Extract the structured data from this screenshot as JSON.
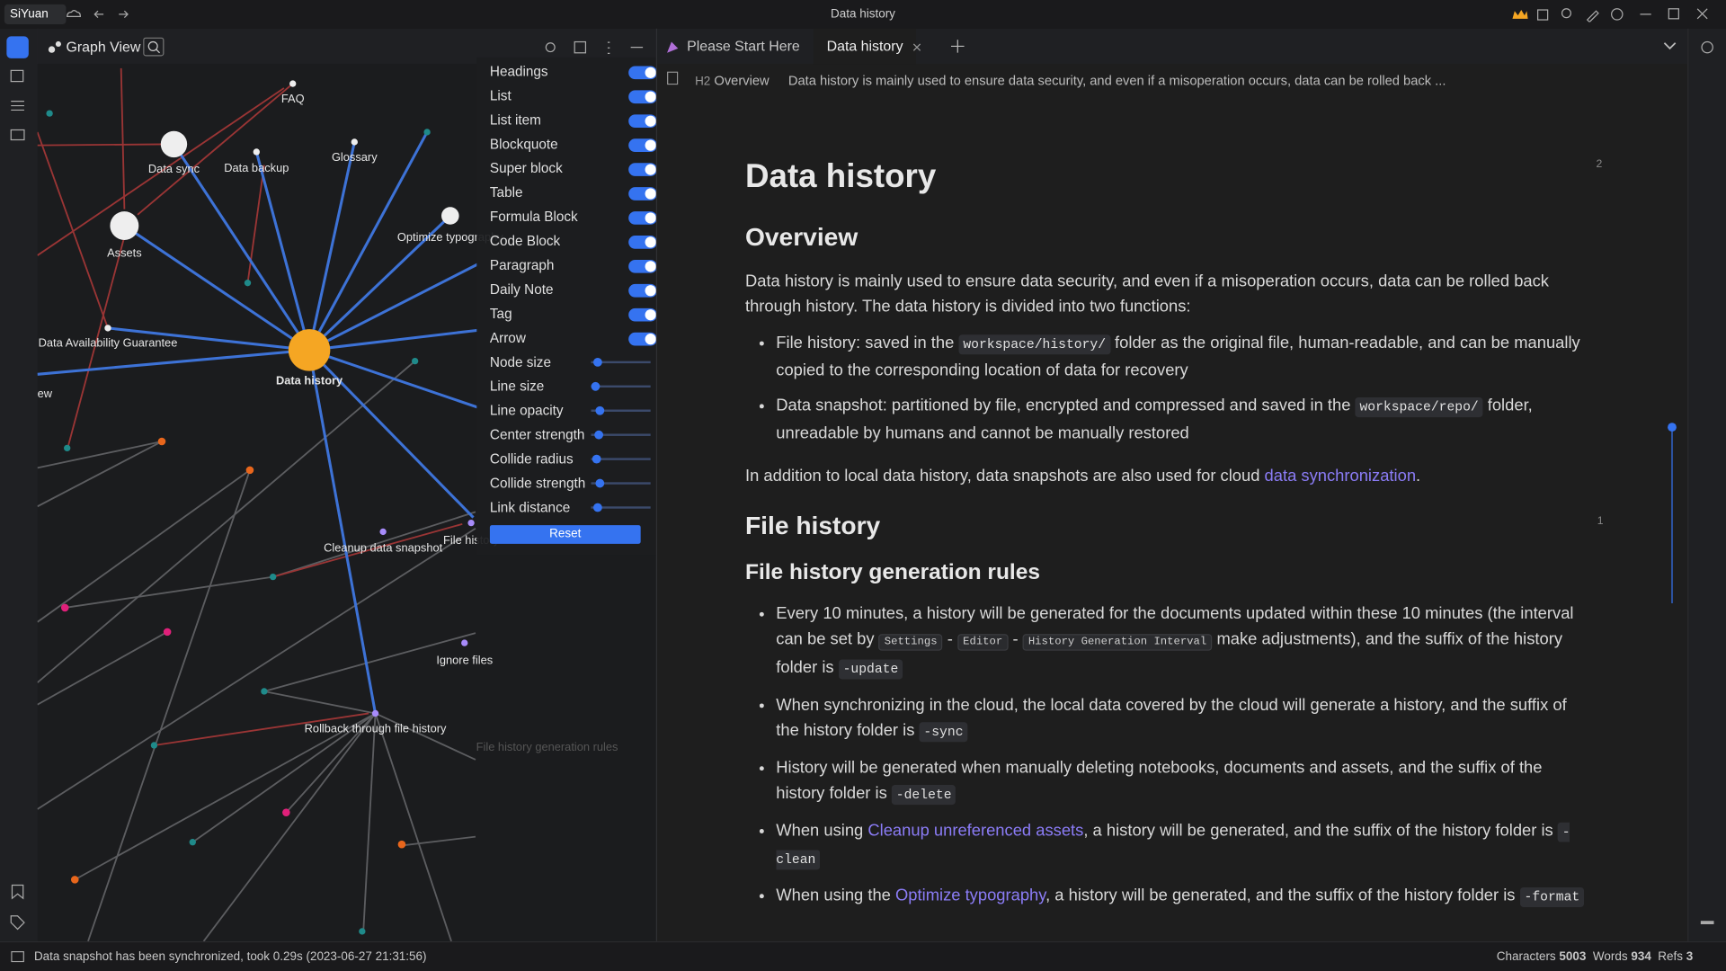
{
  "titlebar": {
    "workspace": "SiYuan",
    "title": "Data history"
  },
  "graph": {
    "title": "Graph View",
    "nodes": [
      "FAQ",
      "Data sync",
      "Data backup",
      "Glossary",
      "Assets",
      "Optimize typography",
      "Data Availability Guarantee",
      "ew",
      "Data history",
      "Cleanup data snapshot",
      "File history",
      "Ignore files",
      "Rollback through file history",
      "File history generation rules"
    ],
    "settings": {
      "toggles": [
        "Headings",
        "List",
        "List item",
        "Blockquote",
        "Super block",
        "Table",
        "Formula Block",
        "Code Block",
        "Paragraph",
        "Daily Note",
        "Tag",
        "Arrow"
      ],
      "sliders": [
        "Node size",
        "Line size",
        "Line opacity",
        "Center strength",
        "Collide radius",
        "Collide strength",
        "Link distance"
      ],
      "reset": "Reset"
    }
  },
  "tabs": [
    "Please Start Here",
    "Data history"
  ],
  "breadcrumb": {
    "heading_marker": "H2",
    "heading": "Overview",
    "paragraph": "Data history is mainly used to ensure data security, and even if a misoperation occurs, data can be rolled back ..."
  },
  "doc": {
    "title": "Data history",
    "title_refs": 2,
    "overview": {
      "heading": "Overview",
      "intro": [
        "Data history is mainly used to ensure data security, and even if a misoperation occurs, data can be rolled back through history. The data history is divided into two functions:"
      ],
      "bullets": [
        [
          "File history: saved in the ",
          {
            "code": "workspace/history/"
          },
          " folder as the original file, human-readable, and can be manually copied to the corresponding location of data for recovery"
        ],
        [
          "Data snapshot: partitioned by file, encrypted and compressed and saved in the ",
          {
            "code": "workspace/repo/"
          },
          " folder, unreadable by humans and cannot be manually restored"
        ]
      ],
      "outro": [
        "In addition to local data history, data snapshots are also used for cloud ",
        {
          "link": "data synchronization"
        },
        "."
      ]
    },
    "file_history": {
      "heading": "File history",
      "heading_refs": 1,
      "subheading": "File history generation rules",
      "bullets": [
        [
          "Every 10 minutes, a history will be generated for the documents updated within these 10 minutes (the interval can be set by ",
          {
            "kbd": "Settings"
          },
          " - ",
          {
            "kbd": "Editor"
          },
          " - ",
          {
            "kbd": "History Generation Interval"
          },
          " make adjustments), and the suffix of the history folder is ",
          {
            "code": "-update"
          }
        ],
        [
          "When synchronizing in the cloud, the local data covered by the cloud will generate a history, and the suffix of the history folder is ",
          {
            "code": "-sync"
          }
        ],
        [
          "History will be generated when manually deleting notebooks, documents and assets, and the suffix of the history folder is ",
          {
            "code": "-delete"
          }
        ],
        [
          "When using ",
          {
            "link": "Cleanup unreferenced assets"
          },
          ", a history will be generated, and the suffix of the history folder is ",
          {
            "code": "-clean"
          }
        ],
        [
          "When using the ",
          {
            "link": "Optimize typography"
          },
          ", a history will be generated, and the suffix of the history folder is ",
          {
            "code": "-format"
          }
        ]
      ]
    }
  },
  "status": {
    "message": "Data snapshot has been synchronized, took 0.29s (2023-06-27 21:31:56)",
    "characters_label": "Characters",
    "characters": 5003,
    "words_label": "Words",
    "words": 934,
    "refs_label": "Refs",
    "refs": 3
  }
}
